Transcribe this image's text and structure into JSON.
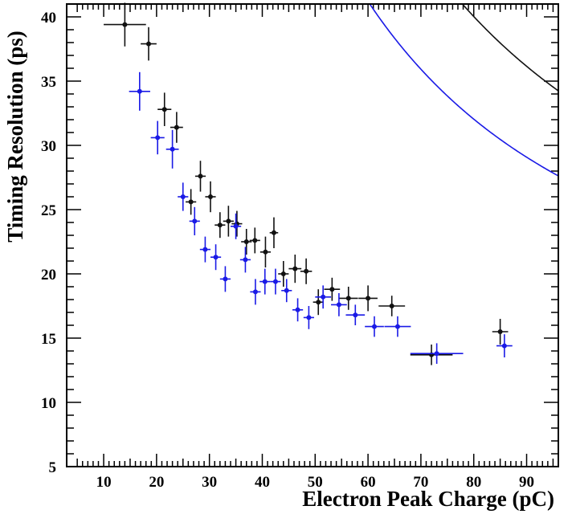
{
  "chart_data": {
    "type": "scatter",
    "title": "",
    "xlabel": "Electron Peak Charge (pC)",
    "ylabel": "Timing Resolution (ps)",
    "xlim": [
      3,
      96
    ],
    "ylim": [
      5,
      41
    ],
    "x_ticks": [
      10,
      20,
      30,
      40,
      50,
      60,
      70,
      80,
      90
    ],
    "y_ticks": [
      5,
      10,
      15,
      20,
      25,
      30,
      35,
      40
    ],
    "grid": false,
    "legend": "none",
    "colors": {
      "black": "#111111",
      "blue": "#1a1ae6"
    },
    "series": [
      {
        "name": "black",
        "color": "#111111",
        "points": [
          {
            "x": 14,
            "y": 39.4,
            "xerr": 4,
            "yerr": 1.7
          },
          {
            "x": 18.5,
            "y": 37.9,
            "xerr": 1.5,
            "yerr": 1.3
          },
          {
            "x": 21.5,
            "y": 32.8,
            "xerr": 1.3,
            "yerr": 1.3
          },
          {
            "x": 23.8,
            "y": 31.4,
            "xerr": 1.2,
            "yerr": 1.2
          },
          {
            "x": 26.5,
            "y": 25.6,
            "xerr": 1.0,
            "yerr": 1.0
          },
          {
            "x": 28.3,
            "y": 27.6,
            "xerr": 1.0,
            "yerr": 1.2
          },
          {
            "x": 30.2,
            "y": 26.0,
            "xerr": 1.0,
            "yerr": 1.2
          },
          {
            "x": 32.0,
            "y": 23.8,
            "xerr": 1.0,
            "yerr": 1.0
          },
          {
            "x": 33.6,
            "y": 24.1,
            "xerr": 1.0,
            "yerr": 1.2
          },
          {
            "x": 35.2,
            "y": 23.9,
            "xerr": 1.0,
            "yerr": 1.0
          },
          {
            "x": 37.0,
            "y": 22.5,
            "xerr": 1.0,
            "yerr": 1.0
          },
          {
            "x": 38.6,
            "y": 22.6,
            "xerr": 1.0,
            "yerr": 1.0
          },
          {
            "x": 40.6,
            "y": 21.7,
            "xerr": 1.0,
            "yerr": 1.2
          },
          {
            "x": 42.2,
            "y": 23.2,
            "xerr": 0.8,
            "yerr": 1.2
          },
          {
            "x": 44.0,
            "y": 20.0,
            "xerr": 1.0,
            "yerr": 1.0
          },
          {
            "x": 46.2,
            "y": 20.4,
            "xerr": 1.2,
            "yerr": 1.1
          },
          {
            "x": 48.3,
            "y": 20.2,
            "xerr": 1.1,
            "yerr": 1.0
          },
          {
            "x": 50.6,
            "y": 17.8,
            "xerr": 1.0,
            "yerr": 1.0
          },
          {
            "x": 53.2,
            "y": 18.8,
            "xerr": 1.5,
            "yerr": 0.9
          },
          {
            "x": 56.3,
            "y": 18.1,
            "xerr": 1.8,
            "yerr": 0.9
          },
          {
            "x": 60.0,
            "y": 18.1,
            "xerr": 1.8,
            "yerr": 1.0
          },
          {
            "x": 64.5,
            "y": 17.5,
            "xerr": 2.5,
            "yerr": 0.8
          },
          {
            "x": 72.0,
            "y": 13.7,
            "xerr": 4.0,
            "yerr": 0.8
          },
          {
            "x": 85.0,
            "y": 15.5,
            "xerr": 1.5,
            "yerr": 1.0
          }
        ],
        "fit": {
          "a": 14.0,
          "b": 3000,
          "n": 2
        }
      },
      {
        "name": "blue",
        "color": "#1a1ae6",
        "points": [
          {
            "x": 16.8,
            "y": 34.2,
            "xerr": 2.0,
            "yerr": 1.5
          },
          {
            "x": 20.2,
            "y": 30.6,
            "xerr": 1.3,
            "yerr": 1.3
          },
          {
            "x": 23.0,
            "y": 29.7,
            "xerr": 1.2,
            "yerr": 1.5
          },
          {
            "x": 25.0,
            "y": 26.0,
            "xerr": 1.0,
            "yerr": 1.1
          },
          {
            "x": 27.2,
            "y": 24.1,
            "xerr": 1.0,
            "yerr": 1.1
          },
          {
            "x": 29.2,
            "y": 21.9,
            "xerr": 1.0,
            "yerr": 1.0
          },
          {
            "x": 31.2,
            "y": 21.3,
            "xerr": 1.0,
            "yerr": 1.0
          },
          {
            "x": 33.0,
            "y": 19.6,
            "xerr": 1.0,
            "yerr": 1.0
          },
          {
            "x": 35.0,
            "y": 23.7,
            "xerr": 1.0,
            "yerr": 1.0
          },
          {
            "x": 36.8,
            "y": 21.1,
            "xerr": 1.0,
            "yerr": 1.0
          },
          {
            "x": 38.7,
            "y": 18.6,
            "xerr": 1.0,
            "yerr": 1.0
          },
          {
            "x": 40.5,
            "y": 19.4,
            "xerr": 1.0,
            "yerr": 1.0
          },
          {
            "x": 42.5,
            "y": 19.4,
            "xerr": 1.0,
            "yerr": 1.0
          },
          {
            "x": 44.6,
            "y": 18.7,
            "xerr": 1.0,
            "yerr": 0.9
          },
          {
            "x": 46.7,
            "y": 17.2,
            "xerr": 1.0,
            "yerr": 0.9
          },
          {
            "x": 48.8,
            "y": 16.6,
            "xerr": 1.0,
            "yerr": 0.9
          },
          {
            "x": 51.5,
            "y": 18.2,
            "xerr": 1.5,
            "yerr": 0.9
          },
          {
            "x": 54.5,
            "y": 17.6,
            "xerr": 1.5,
            "yerr": 0.9
          },
          {
            "x": 57.6,
            "y": 16.8,
            "xerr": 1.8,
            "yerr": 0.8
          },
          {
            "x": 61.2,
            "y": 15.9,
            "xerr": 1.8,
            "yerr": 0.8
          },
          {
            "x": 65.6,
            "y": 15.9,
            "xerr": 2.5,
            "yerr": 0.8
          },
          {
            "x": 73.0,
            "y": 13.8,
            "xerr": 5.0,
            "yerr": 0.8
          },
          {
            "x": 85.8,
            "y": 14.4,
            "xerr": 1.5,
            "yerr": 0.9
          }
        ],
        "fit": {
          "a": 12.8,
          "b": 2350,
          "n": 2
        }
      }
    ]
  }
}
